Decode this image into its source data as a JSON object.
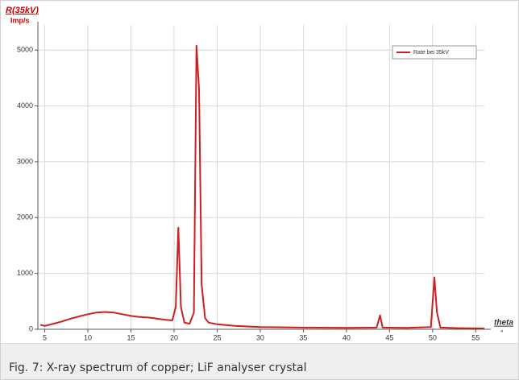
{
  "chart_data": {
    "type": "line",
    "y_label": "R(35kV)",
    "y_unit": "Imp/s",
    "x_label": "theta",
    "x_unit": "°",
    "x": [
      4.5,
      5,
      6,
      7,
      8,
      9,
      10,
      11,
      12,
      13,
      14,
      15,
      16,
      17,
      18,
      19,
      19.8,
      20.2,
      20.5,
      20.8,
      21.2,
      21.8,
      22.3,
      22.6,
      22.9,
      23.2,
      23.6,
      24,
      25,
      27,
      30,
      35,
      40,
      43.5,
      43.9,
      44.2,
      47,
      49.8,
      50.2,
      50.5,
      50.9,
      53,
      56
    ],
    "series": [
      {
        "name": "Rate bei 35kV",
        "color": "#cc1f1f",
        "values": [
          80,
          60,
          100,
          140,
          190,
          230,
          270,
          300,
          310,
          300,
          270,
          240,
          220,
          210,
          190,
          170,
          160,
          400,
          1820,
          400,
          120,
          100,
          300,
          5080,
          4300,
          800,
          200,
          120,
          90,
          60,
          40,
          30,
          25,
          30,
          250,
          30,
          25,
          40,
          930,
          300,
          30,
          20,
          15
        ]
      }
    ],
    "xlim": [
      4.2,
      56
    ],
    "ylim": [
      0,
      5450
    ],
    "xticks": [
      5,
      10,
      15,
      20,
      25,
      30,
      35,
      40,
      45,
      50,
      55
    ],
    "yticks": [
      0,
      1000,
      2000,
      3000,
      4000,
      5000
    ],
    "grid": true,
    "legend": "upper right"
  },
  "caption": "Fig. 7: X-ray spectrum of copper; LiF analyser crystal"
}
